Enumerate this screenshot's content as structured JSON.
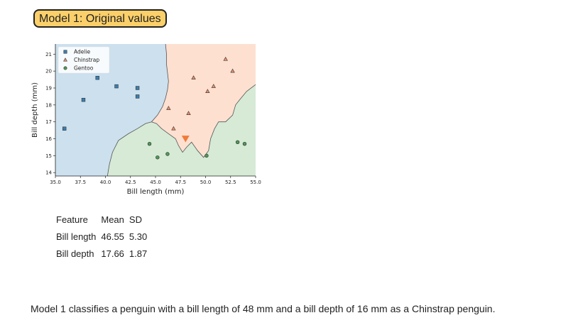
{
  "title_badge": "Model 1: Original values",
  "chart_data": {
    "type": "scatter",
    "xlabel": "Bill length (mm)",
    "ylabel": "Bill depth (mm)",
    "xlim": [
      35.0,
      55.0
    ],
    "ylim": [
      13.8,
      21.6
    ],
    "xticks": [
      "35.0",
      "37.5",
      "40.0",
      "42.5",
      "45.0",
      "47.5",
      "50.0",
      "52.5",
      "55.0"
    ],
    "yticks": [
      "14",
      "15",
      "16",
      "17",
      "18",
      "19",
      "20",
      "21"
    ],
    "legend_position": "top-left",
    "regions": [
      {
        "name": "Adelie",
        "color": "#cce0ee"
      },
      {
        "name": "Chinstrap",
        "color": "#fde0d0"
      },
      {
        "name": "Gentoo",
        "color": "#d6ead6"
      }
    ],
    "series": [
      {
        "name": "Adelie",
        "marker": "square",
        "color": "#3b7fb0",
        "points": [
          [
            35.9,
            16.6
          ],
          [
            37.8,
            18.3
          ],
          [
            39.2,
            19.6
          ],
          [
            41.1,
            19.1
          ],
          [
            43.2,
            19.0
          ],
          [
            43.2,
            18.5
          ]
        ]
      },
      {
        "name": "Chinstrap",
        "marker": "triangle",
        "color": "#e8906a",
        "points": [
          [
            46.3,
            17.8
          ],
          [
            46.8,
            16.6
          ],
          [
            48.3,
            17.5
          ],
          [
            48.8,
            19.6
          ],
          [
            50.2,
            18.8
          ],
          [
            50.8,
            19.1
          ],
          [
            52.0,
            20.7
          ],
          [
            52.7,
            20.0
          ]
        ]
      },
      {
        "name": "Gentoo",
        "marker": "circle",
        "color": "#4e9a55",
        "points": [
          [
            44.4,
            15.7
          ],
          [
            45.2,
            14.9
          ],
          [
            46.2,
            15.1
          ],
          [
            50.1,
            15.0
          ],
          [
            53.2,
            15.8
          ],
          [
            53.9,
            15.7
          ]
        ]
      }
    ],
    "query_point": {
      "x": 48.0,
      "y": 16.0,
      "marker": "triangle-down",
      "color": "#f07b3a"
    },
    "boundaries": {
      "adelie_chinstrap_upper": [
        [
          46.0,
          21.6
        ],
        [
          46.1,
          21.0
        ],
        [
          46.1,
          20.4
        ],
        [
          46.2,
          19.9
        ],
        [
          46.3,
          19.4
        ],
        [
          46.2,
          18.9
        ],
        [
          46.0,
          18.4
        ],
        [
          45.7,
          17.9
        ],
        [
          45.2,
          17.4
        ],
        [
          44.6,
          17.0
        ]
      ],
      "top_junction": [
        [
          44.6,
          17.0
        ],
        [
          45.1,
          16.9
        ],
        [
          45.6,
          16.6
        ],
        [
          46.3,
          16.3
        ],
        [
          47.0,
          16.0
        ],
        [
          47.3,
          15.6
        ],
        [
          47.7,
          15.2
        ],
        [
          48.1,
          15.5
        ],
        [
          48.6,
          15.8
        ],
        [
          49.2,
          15.3
        ],
        [
          49.8,
          14.9
        ],
        [
          50.3,
          15.3
        ],
        [
          50.5,
          16.0
        ],
        [
          50.9,
          16.6
        ],
        [
          51.3,
          17.0
        ],
        [
          52.0,
          17.0
        ],
        [
          52.7,
          17.4
        ],
        [
          53.0,
          18.0
        ],
        [
          53.4,
          18.3
        ],
        [
          54.1,
          18.8
        ],
        [
          55.0,
          19.2
        ]
      ],
      "adelie_gentoo_lower": [
        [
          44.6,
          17.0
        ],
        [
          44.0,
          16.9
        ],
        [
          43.2,
          16.6
        ],
        [
          42.3,
          16.3
        ],
        [
          41.3,
          15.9
        ],
        [
          40.7,
          15.2
        ],
        [
          40.4,
          14.5
        ],
        [
          40.2,
          13.8
        ]
      ]
    }
  },
  "stats_table": {
    "headers": [
      "Feature",
      "Mean",
      "SD"
    ],
    "rows": [
      [
        "Bill length",
        "46.55",
        "5.30"
      ],
      [
        "Bill depth",
        "17.66",
        "1.87"
      ]
    ]
  },
  "caption": "Model 1 classifies a penguin with a bill length of 48 mm and a bill depth of 16 mm as a Chinstrap penguin."
}
